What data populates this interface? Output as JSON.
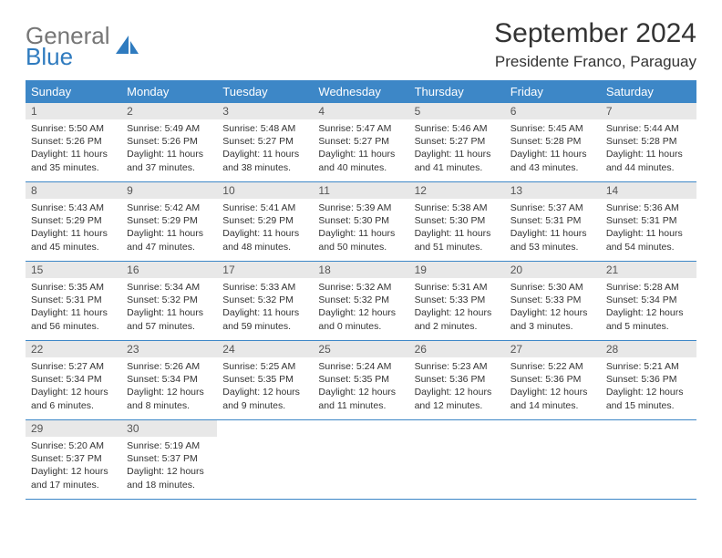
{
  "brand": {
    "word1": "General",
    "word2": "Blue"
  },
  "title": "September 2024",
  "location": "Presidente Franco, Paraguay",
  "colors": {
    "header_bg": "#3d87c7",
    "header_text": "#ffffff",
    "daynum_bg": "#e8e8e8",
    "row_border": "#3d87c7",
    "logo_gray": "#767676",
    "logo_blue": "#2f7bbf"
  },
  "weekdays": [
    "Sunday",
    "Monday",
    "Tuesday",
    "Wednesday",
    "Thursday",
    "Friday",
    "Saturday"
  ],
  "weeks": [
    [
      {
        "n": "1",
        "sunrise": "Sunrise: 5:50 AM",
        "sunset": "Sunset: 5:26 PM",
        "daylight": "Daylight: 11 hours and 35 minutes."
      },
      {
        "n": "2",
        "sunrise": "Sunrise: 5:49 AM",
        "sunset": "Sunset: 5:26 PM",
        "daylight": "Daylight: 11 hours and 37 minutes."
      },
      {
        "n": "3",
        "sunrise": "Sunrise: 5:48 AM",
        "sunset": "Sunset: 5:27 PM",
        "daylight": "Daylight: 11 hours and 38 minutes."
      },
      {
        "n": "4",
        "sunrise": "Sunrise: 5:47 AM",
        "sunset": "Sunset: 5:27 PM",
        "daylight": "Daylight: 11 hours and 40 minutes."
      },
      {
        "n": "5",
        "sunrise": "Sunrise: 5:46 AM",
        "sunset": "Sunset: 5:27 PM",
        "daylight": "Daylight: 11 hours and 41 minutes."
      },
      {
        "n": "6",
        "sunrise": "Sunrise: 5:45 AM",
        "sunset": "Sunset: 5:28 PM",
        "daylight": "Daylight: 11 hours and 43 minutes."
      },
      {
        "n": "7",
        "sunrise": "Sunrise: 5:44 AM",
        "sunset": "Sunset: 5:28 PM",
        "daylight": "Daylight: 11 hours and 44 minutes."
      }
    ],
    [
      {
        "n": "8",
        "sunrise": "Sunrise: 5:43 AM",
        "sunset": "Sunset: 5:29 PM",
        "daylight": "Daylight: 11 hours and 45 minutes."
      },
      {
        "n": "9",
        "sunrise": "Sunrise: 5:42 AM",
        "sunset": "Sunset: 5:29 PM",
        "daylight": "Daylight: 11 hours and 47 minutes."
      },
      {
        "n": "10",
        "sunrise": "Sunrise: 5:41 AM",
        "sunset": "Sunset: 5:29 PM",
        "daylight": "Daylight: 11 hours and 48 minutes."
      },
      {
        "n": "11",
        "sunrise": "Sunrise: 5:39 AM",
        "sunset": "Sunset: 5:30 PM",
        "daylight": "Daylight: 11 hours and 50 minutes."
      },
      {
        "n": "12",
        "sunrise": "Sunrise: 5:38 AM",
        "sunset": "Sunset: 5:30 PM",
        "daylight": "Daylight: 11 hours and 51 minutes."
      },
      {
        "n": "13",
        "sunrise": "Sunrise: 5:37 AM",
        "sunset": "Sunset: 5:31 PM",
        "daylight": "Daylight: 11 hours and 53 minutes."
      },
      {
        "n": "14",
        "sunrise": "Sunrise: 5:36 AM",
        "sunset": "Sunset: 5:31 PM",
        "daylight": "Daylight: 11 hours and 54 minutes."
      }
    ],
    [
      {
        "n": "15",
        "sunrise": "Sunrise: 5:35 AM",
        "sunset": "Sunset: 5:31 PM",
        "daylight": "Daylight: 11 hours and 56 minutes."
      },
      {
        "n": "16",
        "sunrise": "Sunrise: 5:34 AM",
        "sunset": "Sunset: 5:32 PM",
        "daylight": "Daylight: 11 hours and 57 minutes."
      },
      {
        "n": "17",
        "sunrise": "Sunrise: 5:33 AM",
        "sunset": "Sunset: 5:32 PM",
        "daylight": "Daylight: 11 hours and 59 minutes."
      },
      {
        "n": "18",
        "sunrise": "Sunrise: 5:32 AM",
        "sunset": "Sunset: 5:32 PM",
        "daylight": "Daylight: 12 hours and 0 minutes."
      },
      {
        "n": "19",
        "sunrise": "Sunrise: 5:31 AM",
        "sunset": "Sunset: 5:33 PM",
        "daylight": "Daylight: 12 hours and 2 minutes."
      },
      {
        "n": "20",
        "sunrise": "Sunrise: 5:30 AM",
        "sunset": "Sunset: 5:33 PM",
        "daylight": "Daylight: 12 hours and 3 minutes."
      },
      {
        "n": "21",
        "sunrise": "Sunrise: 5:28 AM",
        "sunset": "Sunset: 5:34 PM",
        "daylight": "Daylight: 12 hours and 5 minutes."
      }
    ],
    [
      {
        "n": "22",
        "sunrise": "Sunrise: 5:27 AM",
        "sunset": "Sunset: 5:34 PM",
        "daylight": "Daylight: 12 hours and 6 minutes."
      },
      {
        "n": "23",
        "sunrise": "Sunrise: 5:26 AM",
        "sunset": "Sunset: 5:34 PM",
        "daylight": "Daylight: 12 hours and 8 minutes."
      },
      {
        "n": "24",
        "sunrise": "Sunrise: 5:25 AM",
        "sunset": "Sunset: 5:35 PM",
        "daylight": "Daylight: 12 hours and 9 minutes."
      },
      {
        "n": "25",
        "sunrise": "Sunrise: 5:24 AM",
        "sunset": "Sunset: 5:35 PM",
        "daylight": "Daylight: 12 hours and 11 minutes."
      },
      {
        "n": "26",
        "sunrise": "Sunrise: 5:23 AM",
        "sunset": "Sunset: 5:36 PM",
        "daylight": "Daylight: 12 hours and 12 minutes."
      },
      {
        "n": "27",
        "sunrise": "Sunrise: 5:22 AM",
        "sunset": "Sunset: 5:36 PM",
        "daylight": "Daylight: 12 hours and 14 minutes."
      },
      {
        "n": "28",
        "sunrise": "Sunrise: 5:21 AM",
        "sunset": "Sunset: 5:36 PM",
        "daylight": "Daylight: 12 hours and 15 minutes."
      }
    ],
    [
      {
        "n": "29",
        "sunrise": "Sunrise: 5:20 AM",
        "sunset": "Sunset: 5:37 PM",
        "daylight": "Daylight: 12 hours and 17 minutes."
      },
      {
        "n": "30",
        "sunrise": "Sunrise: 5:19 AM",
        "sunset": "Sunset: 5:37 PM",
        "daylight": "Daylight: 12 hours and 18 minutes."
      },
      null,
      null,
      null,
      null,
      null
    ]
  ]
}
